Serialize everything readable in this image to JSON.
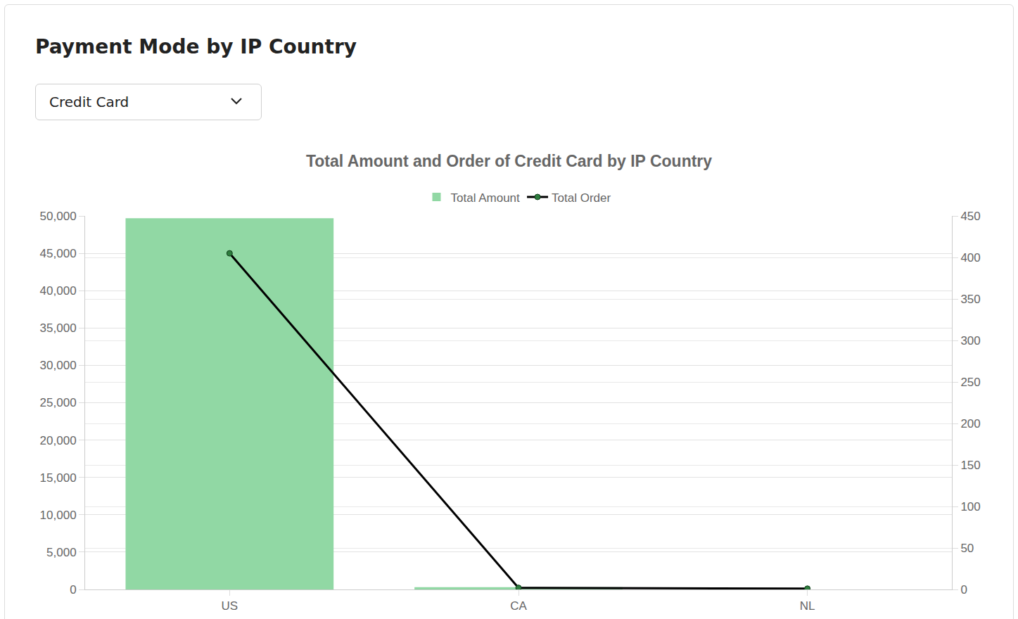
{
  "page": {
    "heading": "Payment Mode by IP Country",
    "dropdown": {
      "selected": "Credit Card"
    }
  },
  "chart_data": {
    "type": "bar",
    "title": "Total Amount and Order of Credit Card by IP Country",
    "categories": [
      "US",
      "CA",
      "NL"
    ],
    "series": [
      {
        "name": "Total Amount",
        "type": "bar",
        "color": "#91d8a4",
        "values": [
          49700,
          300,
          0
        ]
      },
      {
        "name": "Total Order",
        "type": "line",
        "axis": "y2",
        "color": "#000000",
        "marker": "circle",
        "values": [
          405,
          2,
          1
        ]
      }
    ],
    "ylim": [
      0,
      50000
    ],
    "yticks": [
      0,
      {
        "value": 5000,
        "label": "5,000"
      },
      {
        "value": 10000,
        "label": "10,000"
      },
      {
        "value": 15000,
        "label": "15,000"
      },
      {
        "value": 20000,
        "label": "20,000"
      },
      {
        "value": 25000,
        "label": "25,000"
      },
      {
        "value": 30000,
        "label": "30,000"
      },
      {
        "value": 35000,
        "label": "35,000"
      },
      {
        "value": 40000,
        "label": "40,000"
      },
      {
        "value": 45000,
        "label": "45,000"
      },
      {
        "value": 50000,
        "label": "50,000"
      }
    ],
    "y2lim": [
      0,
      450
    ],
    "y2ticks": [
      0,
      50,
      100,
      150,
      200,
      250,
      300,
      350,
      400,
      450
    ],
    "grid": true,
    "legend": "top"
  }
}
